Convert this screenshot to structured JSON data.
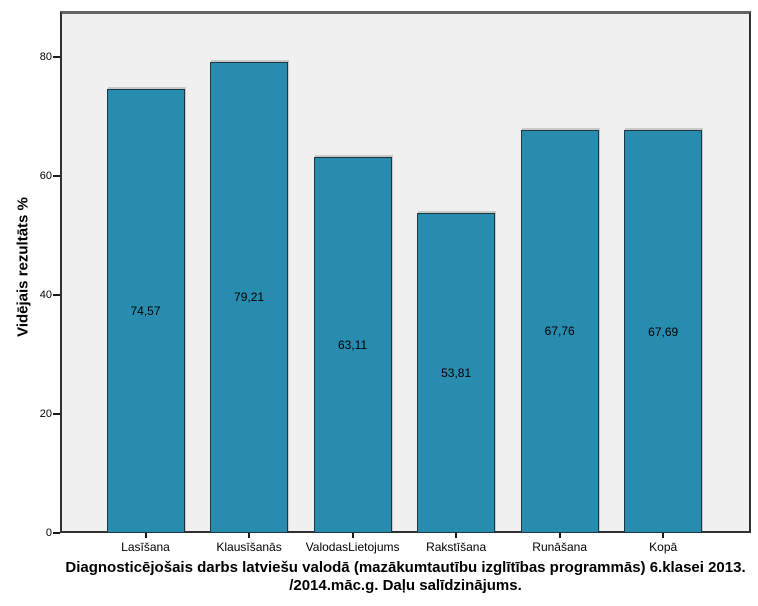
{
  "chart_data": {
    "type": "bar",
    "title": "Diagnosticējošais darbs latviešu valodā (mazākumtautību izglītības programmās) 6.klasei 2013./2014.māc.g. Daļu salīdzinājums.",
    "title_lines": [
      "Diagnosticējošais darbs latviešu valodā (mazākumtautību izglītības programmās) 6.klasei 2013.",
      "/2014.māc.g. Daļu salīdzinājums."
    ],
    "ylabel": "Vidējais rezultāts %",
    "xlabel": "",
    "categories": [
      "Lasīšana",
      "Klausīšanās",
      "ValodasLietojums",
      "Rakstīšana",
      "Runāšana",
      "Kopā"
    ],
    "values": [
      74.57,
      79.21,
      63.11,
      53.81,
      67.76,
      67.69
    ],
    "value_labels": [
      "74,57",
      "79,21",
      "63,11",
      "53,81",
      "67,76",
      "67,69"
    ],
    "yticks": [
      0,
      20,
      40,
      60,
      80
    ],
    "ylim": [
      0,
      87
    ],
    "grid": false,
    "legend": null,
    "bar_fill": "#278cad",
    "bar_border": "#1e3640",
    "plot_bg": "#f0f0f0",
    "page_bg": "#ffffff",
    "text_color": "#000000"
  }
}
